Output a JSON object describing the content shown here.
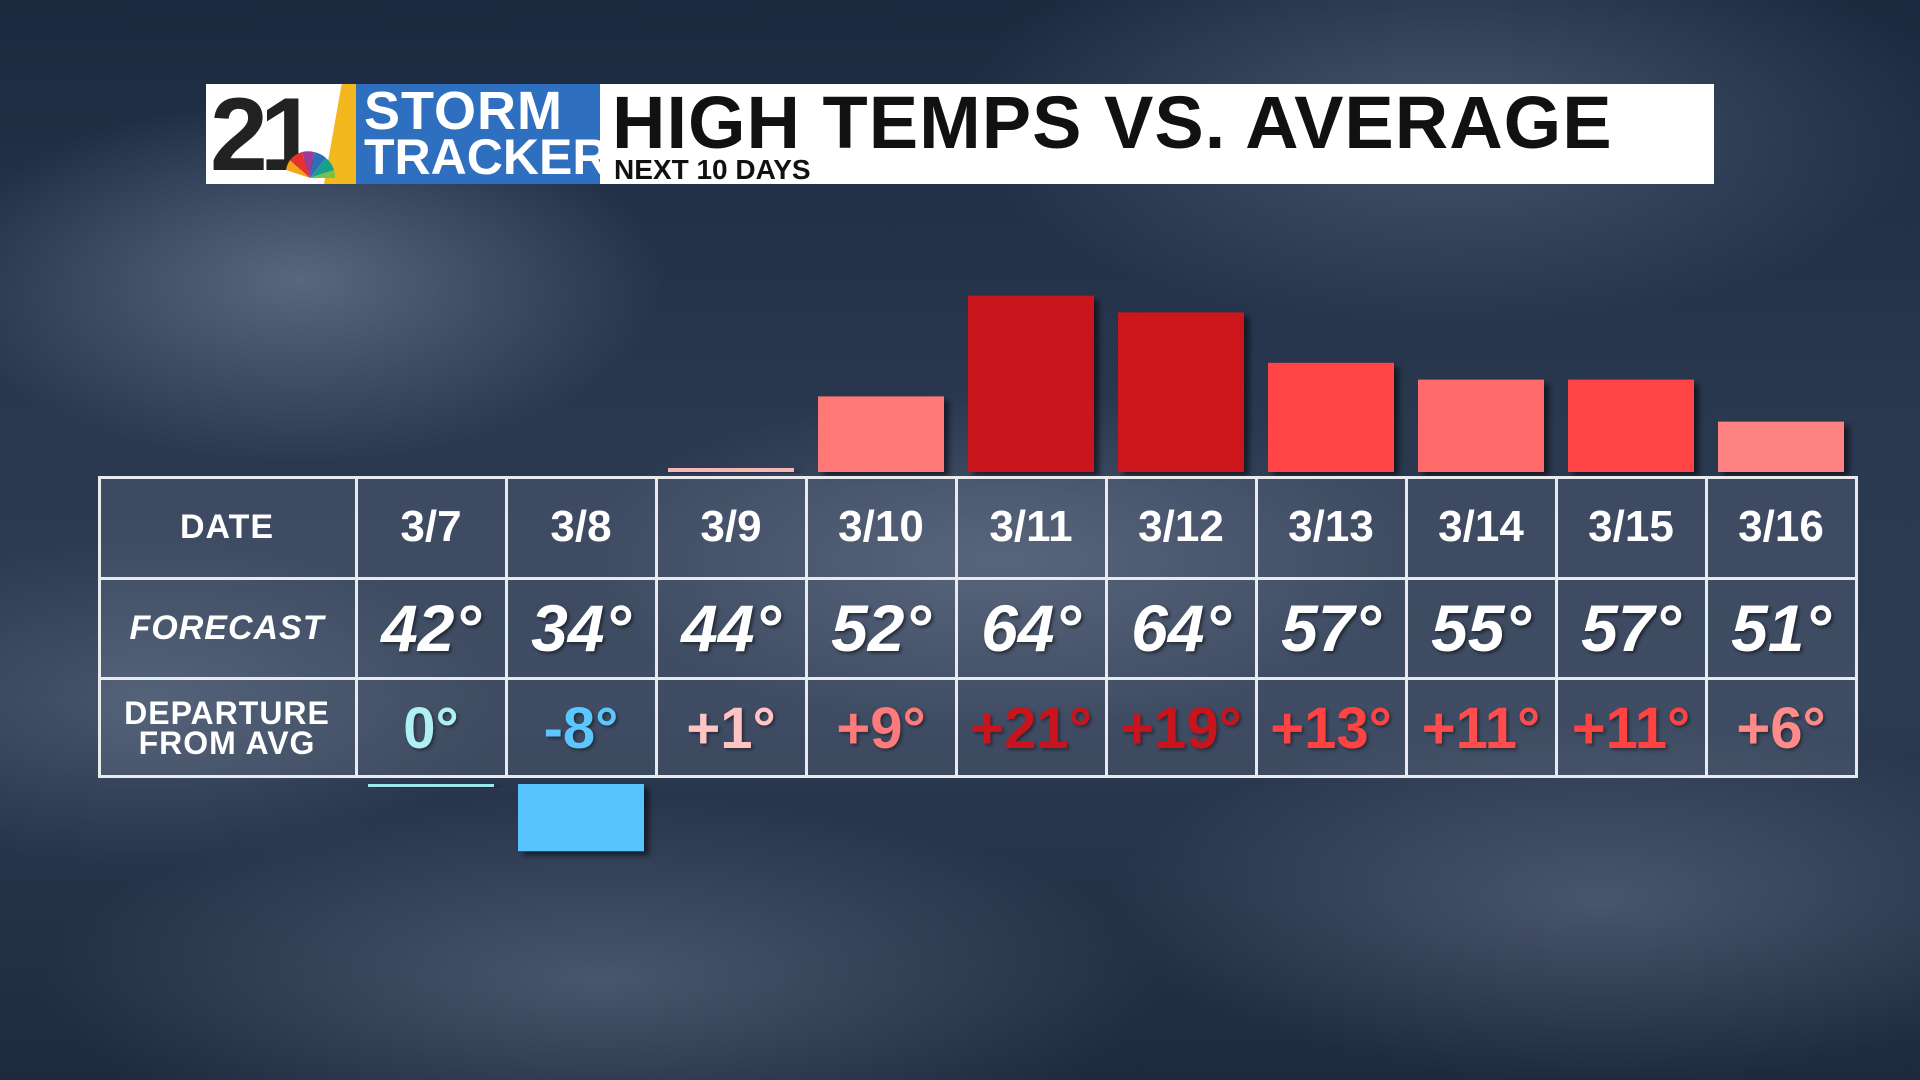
{
  "header": {
    "logo_number": "21",
    "logo_line1": "STORM",
    "logo_line2": "TRACKER",
    "title": "HIGH TEMPS VS. AVERAGE",
    "subtitle": "NEXT 10 DAYS"
  },
  "table": {
    "row_labels": {
      "date": "DATE",
      "forecast": "FORECAST",
      "departure_line1": "DEPARTURE",
      "departure_line2": "FROM AVG"
    }
  },
  "colors": {
    "positive_small": "#f5b6b6",
    "positive_mid": "#ff7878",
    "positive_high": "#ff4444",
    "positive_max": "#c9141c",
    "zero": "#9de8ef",
    "negative": "#55c4ff"
  },
  "chart_data": {
    "type": "bar",
    "title": "HIGH TEMPS VS. AVERAGE",
    "subtitle": "NEXT 10 DAYS",
    "categories": [
      "3/7",
      "3/8",
      "3/9",
      "3/10",
      "3/11",
      "3/12",
      "3/13",
      "3/14",
      "3/15",
      "3/16"
    ],
    "series": [
      {
        "values": [
          0,
          -8,
          1,
          9,
          21,
          19,
          13,
          11,
          11,
          6
        ],
        "labels": [
          "0°",
          "-8°",
          "+1°",
          "+9°",
          "+21°",
          "+19°",
          "+13°",
          "+11°",
          "+11°",
          "+6°"
        ]
      }
    ],
    "forecast": [
      "42°",
      "34°",
      "44°",
      "52°",
      "64°",
      "64°",
      "57°",
      "55°",
      "57°",
      "51°"
    ],
    "bar_colors": [
      "#9de8ef",
      "#55c4ff",
      "#f5b6b6",
      "#ff7878",
      "#c9141c",
      "#cc161d",
      "#ff4444",
      "#ff6a6a",
      "#ff4444",
      "#ff8282"
    ],
    "label_colors": [
      "#aef0f4",
      "#5cc6ff",
      "#ffc4c4",
      "#ff7a7a",
      "#c8141c",
      "#c8141c",
      "#ff4242",
      "#ff4c4c",
      "#ff4242",
      "#ff8a8a"
    ],
    "grid": false,
    "legend": "none"
  }
}
